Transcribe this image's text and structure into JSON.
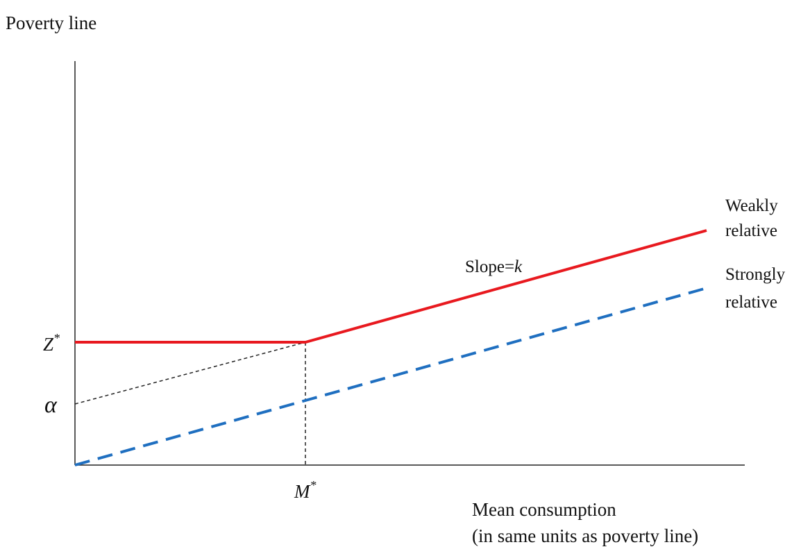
{
  "axes": {
    "y_label": "Poverty line",
    "x_label_lines": [
      "Mean consumption",
      "(in same units as poverty line)"
    ]
  },
  "ticks": {
    "y": [
      {
        "label": "Z",
        "superscript": "*"
      },
      {
        "label": "α"
      }
    ],
    "x": [
      {
        "label": "M",
        "superscript": "*"
      }
    ]
  },
  "lines": [
    {
      "label_lines": [
        "Weakly",
        "relative"
      ]
    },
    {
      "label_lines": [
        "Strongly",
        "relative"
      ]
    }
  ],
  "annotation": {
    "text": "Slope=",
    "variable": "k"
  }
}
